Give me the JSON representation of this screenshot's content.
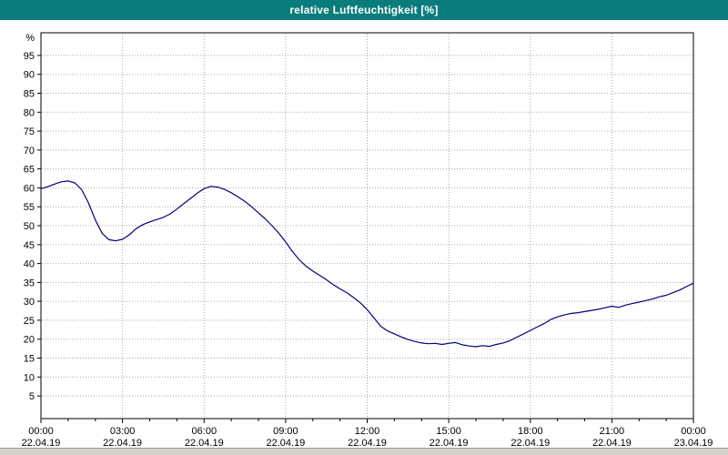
{
  "window": {
    "title": "relative Luftfeuchtigkeit [%]",
    "title_bg": "#0b7c7c",
    "title_color": "#ffffff"
  },
  "chart_data": {
    "type": "line",
    "title": "relative Luftfeuchtigkeit [%]",
    "ylabel": "relative Luftfeuchtigkeit",
    "y_unit_label": "%",
    "xlabel": "",
    "ylim": [
      0,
      100
    ],
    "grid": true,
    "grid_style": "dotted",
    "grid_color": "#a8a8a8",
    "line_color": "#000080",
    "legend_position": "none",
    "y_ticks": [
      5,
      10,
      15,
      20,
      25,
      30,
      35,
      40,
      45,
      50,
      55,
      60,
      65,
      70,
      75,
      80,
      85,
      90,
      95
    ],
    "x_ticks": [
      {
        "hour": 0,
        "time": "00:00",
        "date": "22.04.19"
      },
      {
        "hour": 3,
        "time": "03:00",
        "date": "22.04.19"
      },
      {
        "hour": 6,
        "time": "06:00",
        "date": "22.04.19"
      },
      {
        "hour": 9,
        "time": "09:00",
        "date": "22.04.19"
      },
      {
        "hour": 12,
        "time": "12:00",
        "date": "22.04.19"
      },
      {
        "hour": 15,
        "time": "15:00",
        "date": "22.04.19"
      },
      {
        "hour": 18,
        "time": "18:00",
        "date": "22.04.19"
      },
      {
        "hour": 21,
        "time": "21:00",
        "date": "22.04.19"
      },
      {
        "hour": 24,
        "time": "00:00",
        "date": "23.04.19"
      }
    ],
    "x_range_hours": [
      0,
      24
    ],
    "series": [
      {
        "name": "relative Luftfeuchtigkeit [%]",
        "x_hours": [
          0,
          0.25,
          0.5,
          0.75,
          1,
          1.25,
          1.5,
          1.75,
          2,
          2.25,
          2.5,
          2.75,
          3,
          3.25,
          3.5,
          3.75,
          4,
          4.25,
          4.5,
          4.75,
          5,
          5.25,
          5.5,
          5.75,
          6,
          6.25,
          6.5,
          6.75,
          7,
          7.25,
          7.5,
          7.75,
          8,
          8.25,
          8.5,
          8.75,
          9,
          9.25,
          9.5,
          9.75,
          10,
          10.25,
          10.5,
          10.75,
          11,
          11.25,
          11.5,
          11.75,
          12,
          12.25,
          12.5,
          12.75,
          13,
          13.25,
          13.5,
          13.75,
          14,
          14.25,
          14.5,
          14.75,
          15,
          15.25,
          15.5,
          15.75,
          16,
          16.25,
          16.5,
          16.75,
          17,
          17.25,
          17.5,
          17.75,
          18,
          18.25,
          18.5,
          18.75,
          19,
          19.25,
          19.5,
          19.75,
          20,
          20.25,
          20.5,
          20.75,
          21,
          21.25,
          21.5,
          21.75,
          22,
          22.25,
          22.5,
          22.75,
          23,
          23.25,
          23.5,
          23.75,
          24
        ],
        "values": [
          59.8,
          60.3,
          61.0,
          61.6,
          61.8,
          61.3,
          59.5,
          56.0,
          51.5,
          48.0,
          46.3,
          46.0,
          46.4,
          47.6,
          49.2,
          50.3,
          51.0,
          51.6,
          52.2,
          53.1,
          54.4,
          55.8,
          57.2,
          58.6,
          59.8,
          60.4,
          60.2,
          59.6,
          58.7,
          57.6,
          56.4,
          55.0,
          53.4,
          51.8,
          50.0,
          48.0,
          45.7,
          43.2,
          41.0,
          39.3,
          38.0,
          36.9,
          35.7,
          34.4,
          33.3,
          32.3,
          31.0,
          29.6,
          27.8,
          25.6,
          23.4,
          22.2,
          21.4,
          20.6,
          19.9,
          19.4,
          19.0,
          18.8,
          18.9,
          18.6,
          18.9,
          19.1,
          18.5,
          18.2,
          18.0,
          18.3,
          18.1,
          18.6,
          19.0,
          19.6,
          20.5,
          21.4,
          22.3,
          23.2,
          24.1,
          25.2,
          25.9,
          26.4,
          26.8,
          27.0,
          27.3,
          27.6,
          27.9,
          28.3,
          28.7,
          28.4,
          29.0,
          29.4,
          29.8,
          30.2,
          30.6,
          31.2,
          31.6,
          32.3,
          33.0,
          33.9,
          34.8
        ]
      }
    ]
  }
}
